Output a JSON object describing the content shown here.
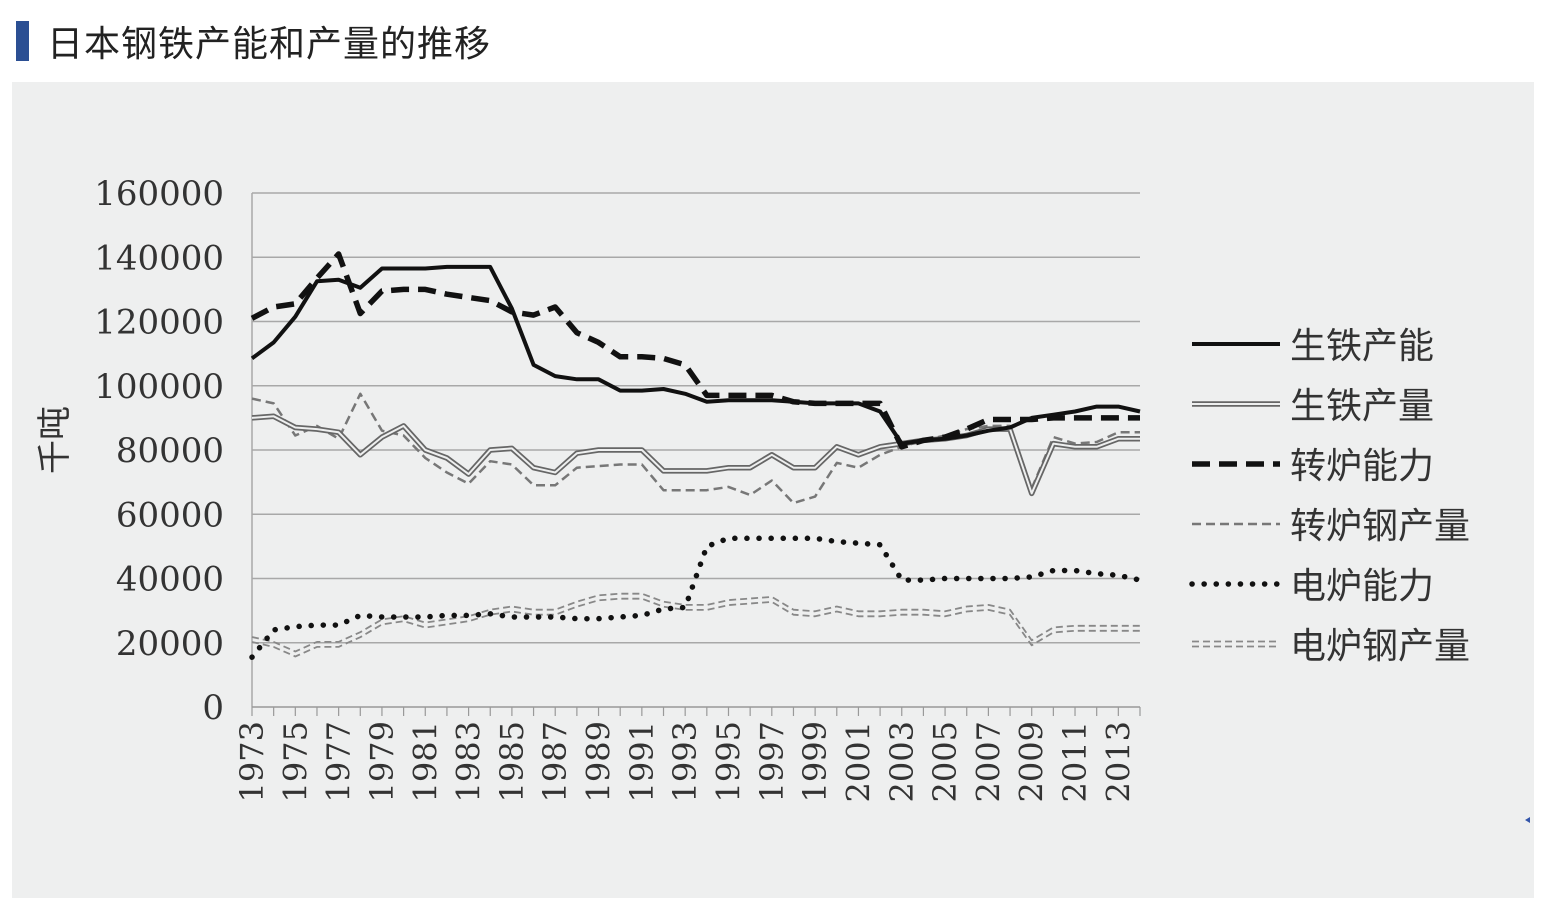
{
  "page": {
    "title": "日本钢铁产能和产量的推移"
  },
  "chart_data": {
    "type": "line",
    "title": "",
    "xlabel": "",
    "ylabel": "千吨",
    "ylim": [
      0,
      160000
    ],
    "yticks": [
      0,
      20000,
      40000,
      60000,
      80000,
      100000,
      120000,
      140000,
      160000
    ],
    "xticks": [
      "1973",
      "1975",
      "1977",
      "1979",
      "1981",
      "1983",
      "1985",
      "1987",
      "1989",
      "1991",
      "1993",
      "1995",
      "1997",
      "1999",
      "2001",
      "2003",
      "2005",
      "2007",
      "2009",
      "2011",
      "2013"
    ],
    "grid": "horizontal",
    "legend_position": "right",
    "x": [
      1973,
      1974,
      1975,
      1976,
      1977,
      1978,
      1979,
      1980,
      1981,
      1982,
      1983,
      1984,
      1985,
      1986,
      1987,
      1988,
      1989,
      1990,
      1991,
      1992,
      1993,
      1994,
      1995,
      1996,
      1997,
      1998,
      1999,
      2000,
      2001,
      2002,
      2003,
      2004,
      2005,
      2006,
      2007,
      2008,
      2009,
      2010,
      2011,
      2012,
      2013,
      2014
    ],
    "series": [
      {
        "name": "生铁产能",
        "style": "solid-thick",
        "color": "#111111",
        "values": [
          108500,
          113500,
          121500,
          132500,
          133000,
          130500,
          136500,
          136500,
          136500,
          137000,
          137000,
          137000,
          124000,
          106500,
          103000,
          102000,
          102000,
          98500,
          98500,
          99000,
          97500,
          95000,
          95500,
          95500,
          95500,
          95000,
          94500,
          94500,
          94500,
          92000,
          82000,
          83000,
          83500,
          84500,
          86000,
          87000,
          90000,
          91000,
          92000,
          93500,
          93500,
          92000
        ]
      },
      {
        "name": "生铁产量",
        "style": "double",
        "color": "#666666",
        "values": [
          90000,
          90500,
          87000,
          86500,
          85500,
          78500,
          84000,
          87500,
          80000,
          77500,
          72500,
          80000,
          80500,
          74500,
          73000,
          79000,
          80000,
          80000,
          80000,
          73500,
          73500,
          73500,
          74500,
          74500,
          78500,
          74500,
          74500,
          81000,
          78500,
          81000,
          82000,
          83000,
          83500,
          84500,
          86500,
          86500,
          66500,
          82000,
          81000,
          81000,
          83500,
          83500
        ]
      },
      {
        "name": "转炉能力",
        "style": "dashed-thick",
        "color": "#111111",
        "values": [
          121000,
          124500,
          125500,
          133500,
          141000,
          122500,
          129500,
          130000,
          130000,
          128500,
          127500,
          126500,
          123000,
          122000,
          124500,
          116500,
          113500,
          109000,
          109000,
          108500,
          106500,
          97000,
          97000,
          97000,
          97000,
          95000,
          94500,
          94500,
          94500,
          94500,
          81000,
          83000,
          84000,
          86500,
          89500,
          89500,
          89500,
          90000,
          90000,
          90000,
          90000,
          90000
        ]
      },
      {
        "name": "转炉钢产量",
        "style": "dashed-thin",
        "color": "#777777",
        "values": [
          96000,
          94500,
          84500,
          87500,
          83500,
          97500,
          86000,
          84500,
          77500,
          73000,
          69500,
          76500,
          75500,
          69000,
          69000,
          74500,
          75000,
          75500,
          75500,
          67500,
          67500,
          67500,
          68500,
          66000,
          70500,
          63500,
          65500,
          76000,
          74500,
          78500,
          81000,
          83000,
          84500,
          86500,
          87500,
          87500,
          68000,
          84000,
          82000,
          82500,
          85500,
          85500
        ]
      },
      {
        "name": "电炉能力",
        "style": "dotted",
        "color": "#111111",
        "values": [
          15500,
          24000,
          25000,
          25500,
          25500,
          28500,
          28000,
          28000,
          28000,
          28500,
          28500,
          29000,
          28000,
          28000,
          28000,
          27500,
          27500,
          28000,
          28500,
          30500,
          31000,
          50000,
          52500,
          52500,
          52500,
          52500,
          52500,
          51500,
          51000,
          50500,
          39500,
          39500,
          40000,
          40000,
          40000,
          40000,
          40500,
          42500,
          42500,
          41500,
          41000,
          39500
        ]
      },
      {
        "name": "电炉钢产量",
        "style": "double-dashed",
        "color": "#888888",
        "values": [
          21000,
          19500,
          16500,
          19500,
          19500,
          22500,
          26500,
          27500,
          25500,
          26500,
          27500,
          29500,
          30500,
          29500,
          29500,
          32000,
          34000,
          34500,
          34500,
          32000,
          31000,
          31000,
          32500,
          33000,
          33500,
          29500,
          29000,
          30500,
          29000,
          29000,
          29500,
          29500,
          29000,
          30500,
          31000,
          29500,
          20000,
          24000,
          24500,
          24500,
          24500,
          24500
        ]
      }
    ]
  }
}
